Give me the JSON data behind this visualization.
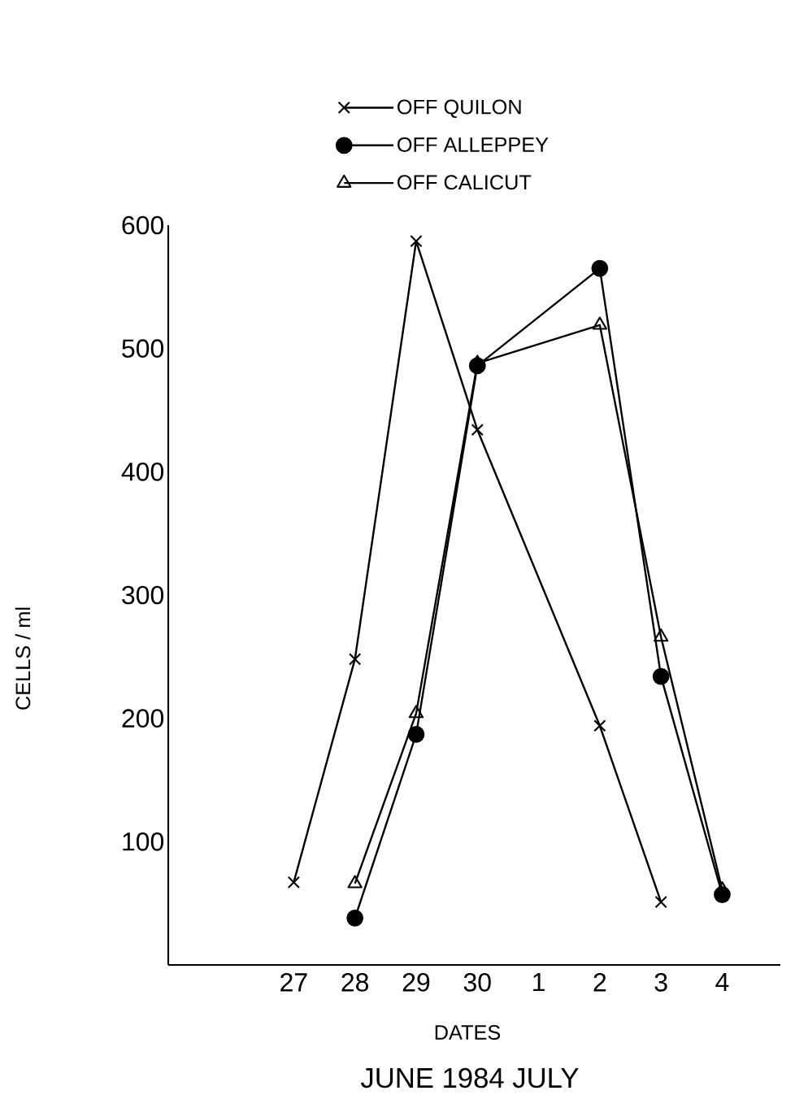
{
  "chart_data": {
    "type": "line",
    "categories": [
      null,
      null,
      "27",
      "28",
      "29",
      "30",
      "1",
      "2",
      "3",
      "4"
    ],
    "series": [
      {
        "name": "OFF QUILON",
        "color": "#000000",
        "marker": "cross",
        "values": [
          null,
          null,
          67,
          248,
          587,
          434,
          null,
          194,
          51,
          null
        ]
      },
      {
        "name": "OFF ALLEPPEY",
        "color": "#000000",
        "marker": "circle",
        "values": [
          null,
          null,
          null,
          38,
          187,
          486,
          null,
          565,
          234,
          57
        ]
      },
      {
        "name": "OFF CALICUT",
        "color": "#000000",
        "marker": "triangle",
        "values": [
          null,
          null,
          null,
          66,
          204,
          488,
          null,
          519,
          266,
          61
        ]
      }
    ],
    "ylim": [
      0,
      600
    ],
    "yticks": [
      100,
      200,
      300,
      400,
      500,
      600
    ],
    "xlabel": "DATES",
    "ylabel": "CELLS / ml",
    "annotations": [
      "JUNE   1984   JULY"
    ],
    "legend": "top",
    "grid": false,
    "line_style": "solid"
  }
}
